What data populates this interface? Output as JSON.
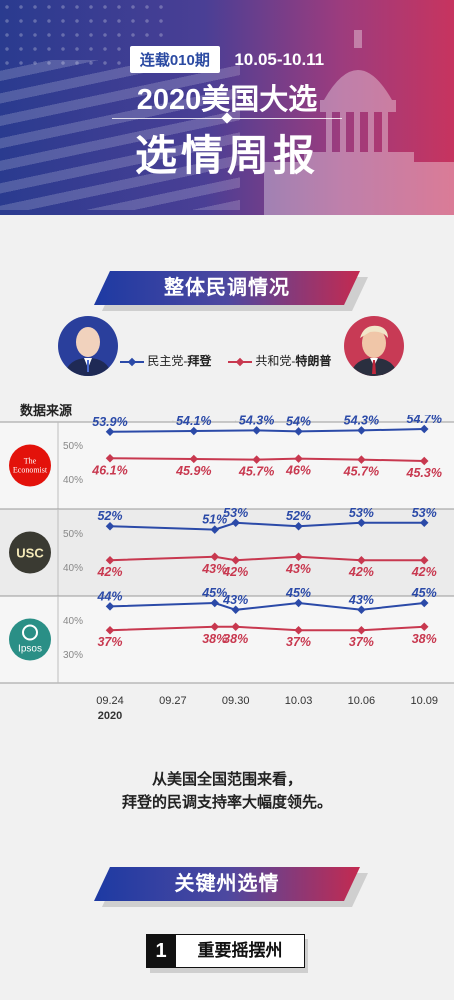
{
  "header": {
    "issue_label": "连载010期",
    "date_range": "10.05-10.11",
    "title": "2020美国大选",
    "subtitle": "选情周报"
  },
  "section1": {
    "title": "整体民调情况"
  },
  "legend": {
    "dem": {
      "prefix": "民主党-",
      "name": "拜登"
    },
    "rep": {
      "prefix": "共和党-",
      "name": "特朗普"
    }
  },
  "colors": {
    "dem": "#2b4aa8",
    "rep": "#c8384f",
    "accent_blue": "#1d3aa3",
    "accent_red": "#c42a50"
  },
  "sources_label": "数据来源",
  "chart_data": {
    "type": "line",
    "x_tick_labels": [
      "09.24",
      "09.27",
      "09.30",
      "10.03",
      "10.06",
      "10.09"
    ],
    "x_year_label": "2020",
    "panels": [
      {
        "source": "The Economist",
        "logo_text": [
          "The",
          "Economist"
        ],
        "logo_color": "#e3120b",
        "y_tick_labels": [
          "50%",
          "40%"
        ],
        "dates": [
          "09.24",
          "09.28",
          "10.01",
          "10.03",
          "10.06",
          "10.09"
        ],
        "series": [
          {
            "name": "民主党-拜登",
            "values": [
              53.9,
              54.1,
              54.3,
              54,
              54.3,
              54.7
            ],
            "labels": [
              "53.9%",
              "54.1%",
              "54.3%",
              "54%",
              "54.3%",
              "54.7%"
            ]
          },
          {
            "name": "共和党-特朗普",
            "values": [
              46.1,
              45.9,
              45.7,
              46,
              45.7,
              45.3
            ],
            "labels": [
              "46.1%",
              "45.9%",
              "45.7%",
              "46%",
              "45.7%",
              "45.3%"
            ]
          }
        ]
      },
      {
        "source": "USC",
        "logo_text": [
          "USC"
        ],
        "logo_color": "#3a3a32",
        "y_tick_labels": [
          "50%",
          "40%"
        ],
        "dates": [
          "09.24",
          "09.29",
          "09.30",
          "10.03",
          "10.06",
          "10.09"
        ],
        "series": [
          {
            "name": "民主党-拜登",
            "values": [
              52,
              51,
              53,
              52,
              53,
              53
            ],
            "labels": [
              "52%",
              "51%",
              "53%",
              "52%",
              "53%",
              "53%"
            ]
          },
          {
            "name": "共和党-特朗普",
            "values": [
              42,
              43,
              42,
              43,
              42,
              42
            ],
            "labels": [
              "42%",
              "43%",
              "42%",
              "43%",
              "42%",
              "42%"
            ]
          }
        ]
      },
      {
        "source": "Ipsos",
        "logo_text": [
          "Ipsos"
        ],
        "logo_color": "#2a8f86",
        "y_tick_labels": [
          "40%",
          "30%"
        ],
        "dates": [
          "09.24",
          "09.29",
          "09.30",
          "10.03",
          "10.06",
          "10.09"
        ],
        "series": [
          {
            "name": "民主党-拜登",
            "values": [
              44,
              45,
              43,
              45,
              43,
              45
            ],
            "labels": [
              "44%",
              "45%",
              "43%",
              "45%",
              "43%",
              "45%"
            ]
          },
          {
            "name": "共和党-特朗普",
            "values": [
              37,
              38,
              38,
              37,
              37,
              38
            ],
            "labels": [
              "37%",
              "38%",
              "38%",
              "37%",
              "37%",
              "38%"
            ]
          }
        ]
      }
    ]
  },
  "summary_lines": [
    "从美国全国范围来看，",
    "拜登的民调支持率大幅度领先。"
  ],
  "section2": {
    "title": "关键州选情"
  },
  "subsection": {
    "number": "1",
    "title": "重要摇摆州"
  }
}
